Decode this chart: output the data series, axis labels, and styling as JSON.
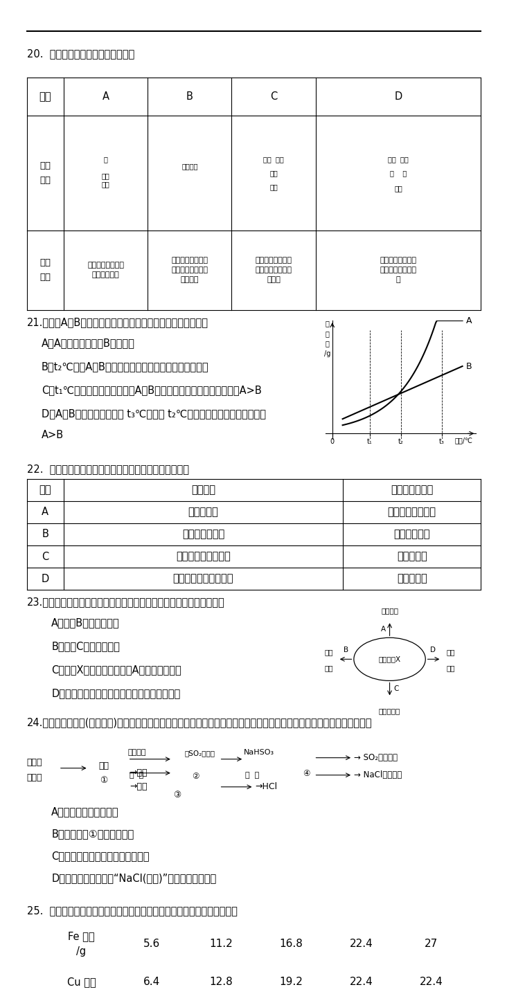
{
  "bg_color": "#ffffff",
  "text_color": "#000000",
  "page_width": 9.2,
  "page_height": 13.02,
  "q20_title": "20.  下列实验设计能达到目的的是：",
  "table20_headers": [
    "选项",
    "A",
    "B",
    "C",
    "D"
  ],
  "table20_A_desc": "证明二氧化碗与水\n反应生成碳酸",
  "table20_B_desc": "证明二氧化碗不可\n燃、不助燃、密度\n大于空气",
  "table20_C_desc": "证明可燃物燃烧需\n要氧气和温度达到\n着火点",
  "table20_D_desc": "证明铁生锈是水和\n氧气共同作用的结\n果",
  "q21_title": "21.右图是A、B两种固体物质的溢解度曲线，下列说法正确的是",
  "q21_A": "A．A的溢解度都大于B的溢解度",
  "q21_B": "B．t₂℃时，A、B两种饱和溶液中，溶质的质量分数相等",
  "q21_C": "C．t₁℃时，用等质量水配制的A、B饱和溶液中，所含溶质的质量：A>B",
  "q21_D": "D．A、B两种饱和溶液都从 t₃℃降温到 t₂℃，析出的晶体的质量一定是：",
  "q21_D2": "A>B",
  "q22_title": "22.  下列依据实验目的所设计的实验操作中，不正确的是",
  "table22_headers": [
    "选项",
    "实验目的",
    "所用试剂或方法"
  ],
  "table22_rows": [
    [
      "A",
      "将粗盐提纯",
      "溶解，过滤，蔯发"
    ],
    [
      "B",
      "鉴别羊毛和涤纶",
      "点燃，闻气味"
    ],
    [
      "C",
      "鉴别浓硫酸和稀硫酸",
      "滴在木条上"
    ],
    [
      "D",
      "除去生石灰中的石灰石",
      "加水，过滤"
    ]
  ],
  "q23_title": "23.右图是初中化学常见化学反应的溶液颜色变化，下列判断不正确的是",
  "q23_A": "A．物质B一定是熟石灰",
  "q23_B": "B．物质C一定是单质铁",
  "q23_C": "C．溶液X一定是酸，则试剂A是紫色石蕊试液",
  "q23_D": "D．蓝色溶液变为浅绿色溶液一定发生置换反应",
  "q24_title": "24.工业上电解海水(含氯化钓)可以得到多种化工产品，同时能处理含二氧化硫的废气，该流程如下图所示。下列说法正确的是",
  "q24_A": "A．该流程中有两种单质",
  "q24_B": "B．图中反应①属于分解反应",
  "q24_C": "C．反应中硫元素的化合价发生变化",
  "q24_D": "D．从海水中最终得到“NaCl(产品)”的过程是物理变化",
  "q25_title": "25.  向一定质量的硫酸钓溶液中加入不同质量的铁粉所呼现的信息如下表：",
  "table25_fe": [
    "5.6",
    "11.2",
    "16.8",
    "22.4",
    "27"
  ],
  "table25_cu": [
    "6.4",
    "12.8",
    "19.2",
    "22.4",
    "22.4"
  ]
}
